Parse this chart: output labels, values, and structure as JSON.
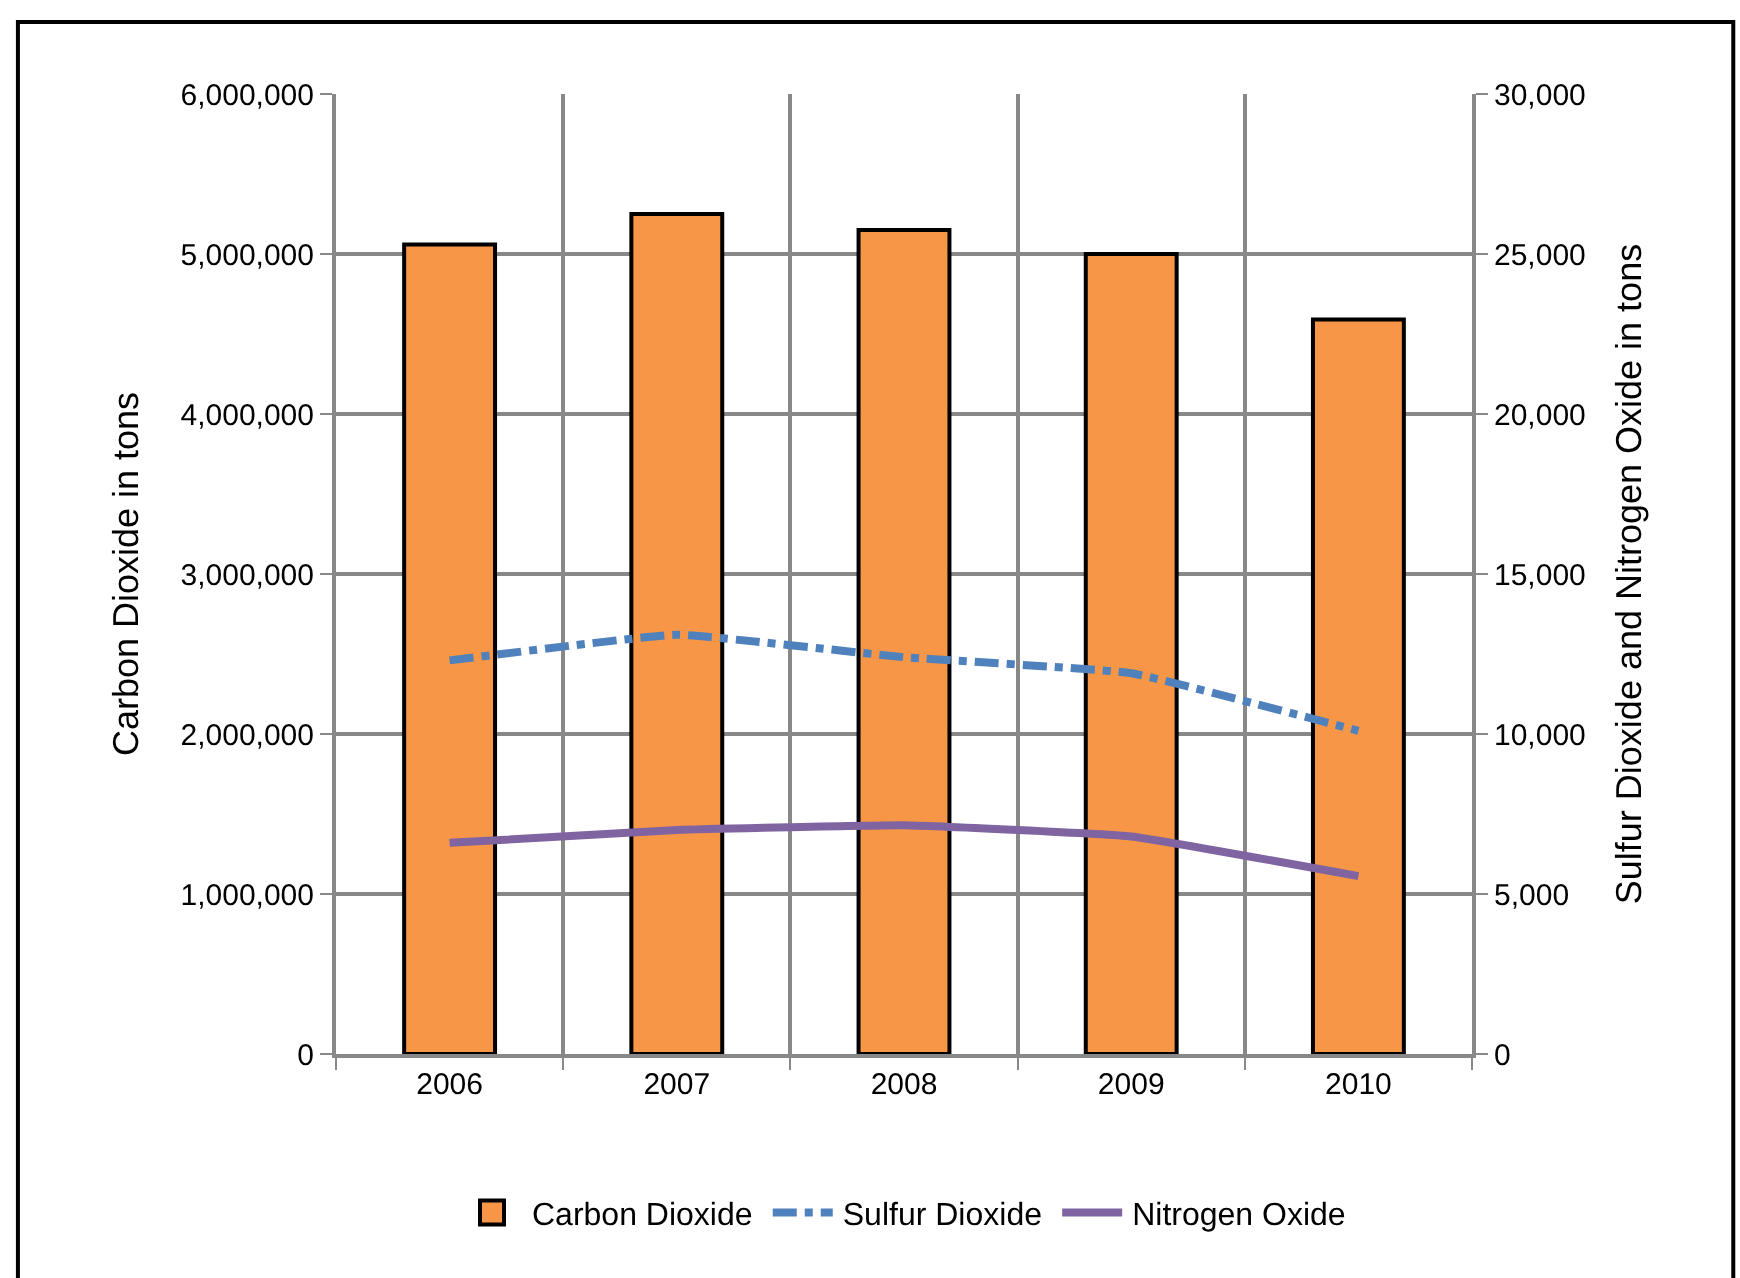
{
  "chart_data": {
    "type": "bar",
    "categories": [
      "2006",
      "2007",
      "2008",
      "2009",
      "2010"
    ],
    "ylabel": "Carbon Dioxide in tons",
    "y2label": "Sulfur Dioxide and Nitrogen Oxide in tons",
    "ylim": [
      0,
      6000000
    ],
    "yticks": [
      0,
      {
        "value": 1000000,
        "label": "1,000,000"
      },
      {
        "value": 2000000,
        "label": "2,000,000"
      },
      {
        "value": 3000000,
        "label": "3,000,000"
      },
      {
        "value": 4000000,
        "label": "4,000,000"
      },
      {
        "value": 5000000,
        "label": "5,000,000"
      },
      {
        "value": 6000000,
        "label": "6,000,000"
      }
    ],
    "y2lim": [
      0,
      30000
    ],
    "y2ticks": [
      0,
      {
        "value": 5000,
        "label": "5,000"
      },
      {
        "value": 10000,
        "label": "10,000"
      },
      {
        "value": 15000,
        "label": "15,000"
      },
      {
        "value": 20000,
        "label": "20,000"
      },
      {
        "value": 25000,
        "label": "25,000"
      },
      {
        "value": 30000,
        "label": "30,000"
      }
    ],
    "grid": true,
    "legend": "bottom",
    "series": [
      {
        "name": "Carbon Dioxide",
        "color": "#f79646",
        "values": [
          5060000,
          5250000,
          5150000,
          5000000,
          4590000
        ]
      },
      {
        "name": "Sulfur Dioxide",
        "type": "line",
        "axis": "y2",
        "line_style": "dashed",
        "marker": "none",
        "color": "#4f81bd",
        "values": [
          12300,
          13100,
          12400,
          11900,
          10100
        ]
      },
      {
        "name": "Nitrogen Oxide",
        "type": "line",
        "axis": "y2",
        "line_style": "solid",
        "marker": "none",
        "color": "#8064a2",
        "values": [
          6600,
          7000,
          7150,
          6800,
          5560
        ]
      }
    ]
  }
}
